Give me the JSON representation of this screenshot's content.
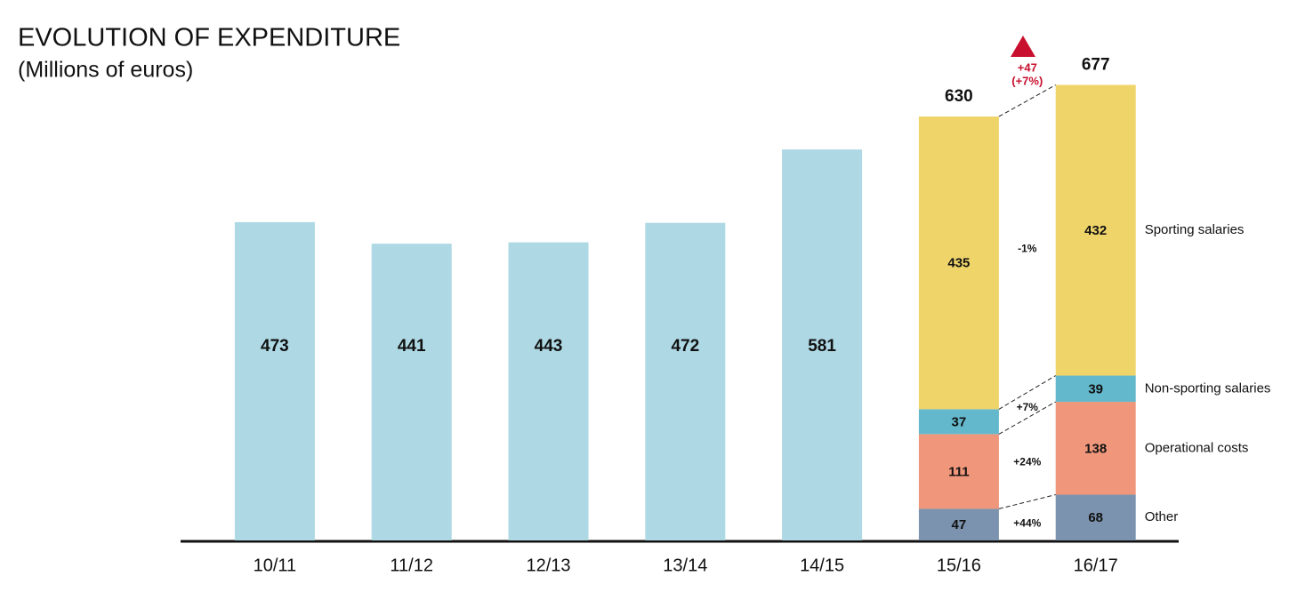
{
  "chart_data": {
    "type": "bar",
    "title": "EVOLUTION OF EXPENDITURE",
    "subtitle": "(Millions of euros)",
    "categories": [
      "10/11",
      "11/12",
      "12/13",
      "13/14",
      "14/15",
      "15/16",
      "16/17"
    ],
    "values": [
      473,
      441,
      443,
      472,
      581,
      null,
      null
    ],
    "color": "#add8e4",
    "totals": [
      null,
      null,
      null,
      null,
      null,
      630,
      677
    ],
    "total_change_labels": [
      "+47",
      "(+7%)"
    ],
    "series": [
      {
        "name": "Other",
        "color": "#7b93ae",
        "values": [
          null,
          null,
          null,
          null,
          null,
          47,
          68
        ],
        "change": "+44%"
      },
      {
        "name": "Operational costs",
        "color": "#ef967b",
        "values": [
          null,
          null,
          null,
          null,
          null,
          111,
          138
        ],
        "change": "+24%"
      },
      {
        "name": "Non-sporting salaries",
        "color": "#63b8cc",
        "values": [
          null,
          null,
          null,
          null,
          null,
          37,
          39
        ],
        "change": "+7%"
      },
      {
        "name": "Sporting salaries",
        "color": "#efd46a",
        "values": [
          null,
          null,
          null,
          null,
          null,
          435,
          432
        ],
        "change": "-1%"
      }
    ],
    "ylim": [
      0,
      800
    ]
  }
}
